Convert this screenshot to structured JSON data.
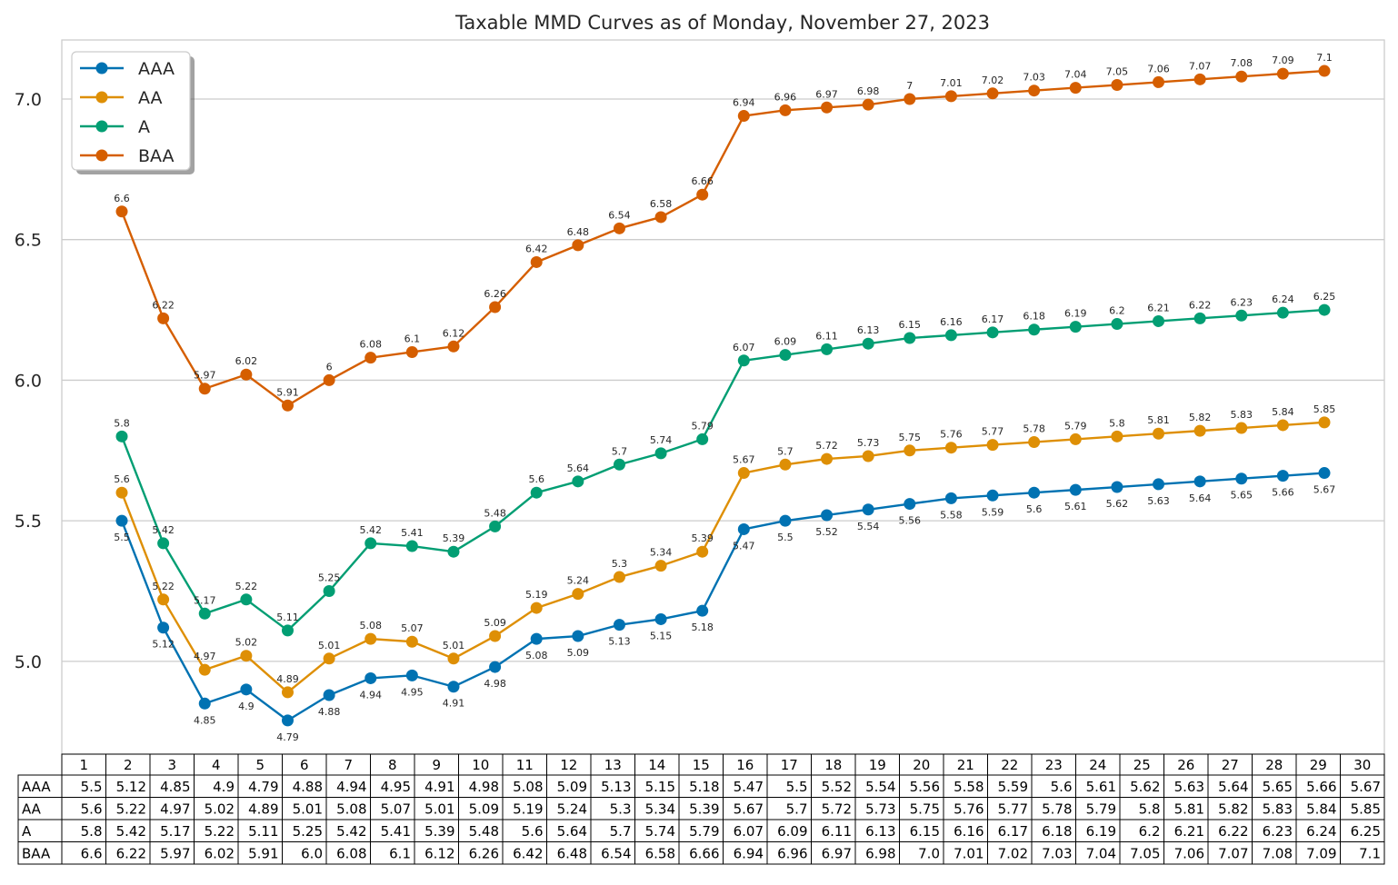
{
  "chart_data": {
    "type": "line",
    "title": "Taxable MMD Curves as of Monday, November 27, 2023",
    "xlabel": "",
    "ylabel": "",
    "ylim": [
      4.67,
      7.21
    ],
    "yticks": [
      "5.0",
      "5.5",
      "6.0",
      "6.5",
      "7.0"
    ],
    "ytick_values": [
      5.0,
      5.5,
      6.0,
      6.5,
      7.0
    ],
    "grid": "horizontal",
    "legend": "top-left",
    "x": [
      1,
      2,
      3,
      4,
      5,
      6,
      7,
      8,
      9,
      10,
      11,
      12,
      13,
      14,
      15,
      16,
      17,
      18,
      19,
      20,
      21,
      22,
      23,
      24,
      25,
      26,
      27,
      28,
      29,
      30
    ],
    "series": [
      {
        "name": "AAA",
        "color": "#0072b2",
        "label_position": "below",
        "values": [
          5.5,
          5.12,
          4.85,
          4.9,
          4.79,
          4.88,
          4.94,
          4.95,
          4.91,
          4.98,
          5.08,
          5.09,
          5.13,
          5.15,
          5.18,
          5.47,
          5.5,
          5.52,
          5.54,
          5.56,
          5.58,
          5.59,
          5.6,
          5.61,
          5.62,
          5.63,
          5.64,
          5.65,
          5.66,
          5.67
        ]
      },
      {
        "name": "AA",
        "color": "#de8f05",
        "label_position": "above",
        "values": [
          5.6,
          5.22,
          4.97,
          5.02,
          4.89,
          5.01,
          5.08,
          5.07,
          5.01,
          5.09,
          5.19,
          5.24,
          5.3,
          5.34,
          5.39,
          5.67,
          5.7,
          5.72,
          5.73,
          5.75,
          5.76,
          5.77,
          5.78,
          5.79,
          5.8,
          5.81,
          5.82,
          5.83,
          5.84,
          5.85
        ]
      },
      {
        "name": "A",
        "color": "#029e73",
        "label_position": "above",
        "values": [
          5.8,
          5.42,
          5.17,
          5.22,
          5.11,
          5.25,
          5.42,
          5.41,
          5.39,
          5.48,
          5.6,
          5.64,
          5.7,
          5.74,
          5.79,
          6.07,
          6.09,
          6.11,
          6.13,
          6.15,
          6.16,
          6.17,
          6.18,
          6.19,
          6.2,
          6.21,
          6.22,
          6.23,
          6.24,
          6.25
        ]
      },
      {
        "name": "BAA",
        "color": "#d55e00",
        "label_position": "above",
        "values": [
          6.6,
          6.22,
          5.97,
          6.02,
          5.91,
          6.0,
          6.08,
          6.1,
          6.12,
          6.26,
          6.42,
          6.48,
          6.54,
          6.58,
          6.66,
          6.94,
          6.96,
          6.97,
          6.98,
          7.0,
          7.01,
          7.02,
          7.03,
          7.04,
          7.05,
          7.06,
          7.07,
          7.08,
          7.09,
          7.1
        ]
      }
    ],
    "table": {
      "col_labels": [
        "1",
        "2",
        "3",
        "4",
        "5",
        "6",
        "7",
        "8",
        "9",
        "10",
        "11",
        "12",
        "13",
        "14",
        "15",
        "16",
        "17",
        "18",
        "19",
        "20",
        "21",
        "22",
        "23",
        "24",
        "25",
        "26",
        "27",
        "28",
        "29",
        "30"
      ],
      "row_labels": [
        "AAA",
        "AA",
        "A",
        "BAA"
      ],
      "cells": [
        [
          "5.5",
          "5.12",
          "4.85",
          "4.9",
          "4.79",
          "4.88",
          "4.94",
          "4.95",
          "4.91",
          "4.98",
          "5.08",
          "5.09",
          "5.13",
          "5.15",
          "5.18",
          "5.47",
          "5.5",
          "5.52",
          "5.54",
          "5.56",
          "5.58",
          "5.59",
          "5.6",
          "5.61",
          "5.62",
          "5.63",
          "5.64",
          "5.65",
          "5.66",
          "5.67"
        ],
        [
          "5.6",
          "5.22",
          "4.97",
          "5.02",
          "4.89",
          "5.01",
          "5.08",
          "5.07",
          "5.01",
          "5.09",
          "5.19",
          "5.24",
          "5.3",
          "5.34",
          "5.39",
          "5.67",
          "5.7",
          "5.72",
          "5.73",
          "5.75",
          "5.76",
          "5.77",
          "5.78",
          "5.79",
          "5.8",
          "5.81",
          "5.82",
          "5.83",
          "5.84",
          "5.85"
        ],
        [
          "5.8",
          "5.42",
          "5.17",
          "5.22",
          "5.11",
          "5.25",
          "5.42",
          "5.41",
          "5.39",
          "5.48",
          "5.6",
          "5.64",
          "5.7",
          "5.74",
          "5.79",
          "6.07",
          "6.09",
          "6.11",
          "6.13",
          "6.15",
          "6.16",
          "6.17",
          "6.18",
          "6.19",
          "6.2",
          "6.21",
          "6.22",
          "6.23",
          "6.24",
          "6.25"
        ],
        [
          "6.6",
          "6.22",
          "5.97",
          "6.02",
          "5.91",
          "6.0",
          "6.08",
          "6.1",
          "6.12",
          "6.26",
          "6.42",
          "6.48",
          "6.54",
          "6.58",
          "6.66",
          "6.94",
          "6.96",
          "6.97",
          "6.98",
          "7.0",
          "7.01",
          "7.02",
          "7.03",
          "7.04",
          "7.05",
          "7.06",
          "7.07",
          "7.08",
          "7.09",
          "7.1"
        ]
      ]
    }
  }
}
